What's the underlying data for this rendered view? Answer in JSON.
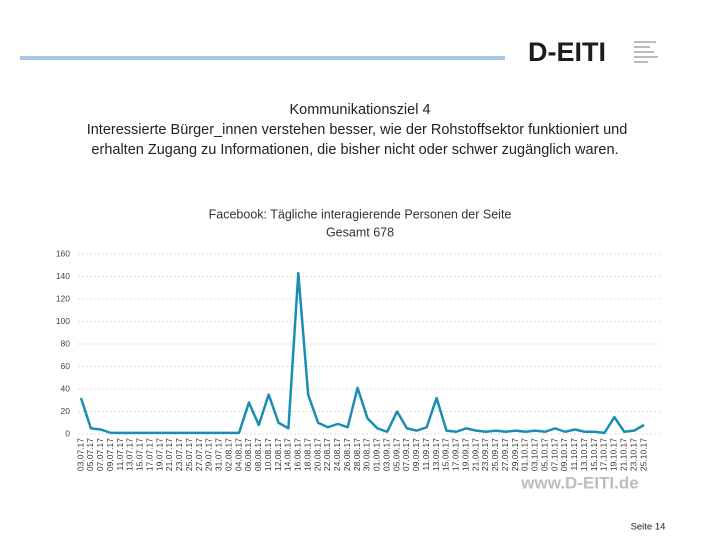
{
  "slide": {
    "title_lines": [
      "Kommunikationsziel 4",
      "Interessierte Bürger_innen verstehen besser, wie der Rohstoffsektor funktioniert und",
      "erhalten Zugang zu Informationen, die bisher nicht oder schwer zugänglich waren."
    ],
    "logo": "D-EITI",
    "url": "www.D-EITI.de",
    "page": "Seite 14"
  },
  "chart_data": {
    "type": "line",
    "title": "Facebook: Tägliche interagierende Personen der Seite",
    "subtitle": "Gesamt 678",
    "categories": [
      "03.07.17",
      "05.07.17",
      "07.07.17",
      "09.07.17",
      "11.07.17",
      "13.07.17",
      "15.07.17",
      "17.07.17",
      "19.07.17",
      "21.07.17",
      "23.07.17",
      "25.07.17",
      "27.07.17",
      "29.07.17",
      "31.07.17",
      "02.08.17",
      "04.08.17",
      "06.08.17",
      "08.08.17",
      "10.08.17",
      "12.08.17",
      "14.08.17",
      "16.08.17",
      "18.08.17",
      "20.08.17",
      "22.08.17",
      "24.08.17",
      "26.08.17",
      "28.08.17",
      "30.08.17",
      "01.09.17",
      "03.09.17",
      "05.09.17",
      "07.09.17",
      "09.09.17",
      "11.09.17",
      "13.09.17",
      "15.09.17",
      "17.09.17",
      "19.09.17",
      "21.09.17",
      "23.09.17",
      "25.09.17",
      "27.09.17",
      "29.09.17",
      "01.10.17",
      "03.10.17",
      "05.10.17",
      "07.10.17",
      "09.10.17",
      "11.10.17",
      "13.10.17",
      "15.10.17",
      "17.10.17",
      "19.10.17",
      "21.10.17",
      "23.10.17",
      "25.10.17"
    ],
    "values": [
      32,
      5,
      4,
      1,
      1,
      1,
      1,
      1,
      1,
      1,
      1,
      1,
      1,
      1,
      1,
      1,
      1,
      28,
      8,
      35,
      10,
      5,
      143,
      35,
      10,
      6,
      9,
      6,
      41,
      14,
      5,
      2,
      20,
      5,
      3,
      6,
      32,
      3,
      2,
      5,
      3,
      2,
      3,
      2,
      3,
      2,
      3,
      2,
      5,
      2,
      4,
      2,
      2,
      1,
      15,
      2,
      3,
      8
    ],
    "color": "#1b8db3",
    "ylim": [
      0,
      160
    ],
    "yticks": [
      0,
      20,
      40,
      60,
      80,
      100,
      120,
      140,
      160
    ],
    "grid": true
  }
}
